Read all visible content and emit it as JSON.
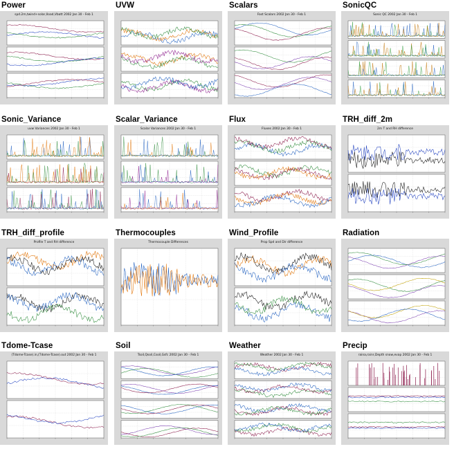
{
  "thumbnails": [
    {
      "label": "Power",
      "subtitle": "spd.2m,twind+solar,Iload,Vbatt 2002 Jan 30 - Feb 1",
      "panels": 3,
      "style": "lines",
      "colors": [
        "#1f3fbf",
        "#8b1a4a",
        "#2e8b3a"
      ]
    },
    {
      "label": "UVW",
      "subtitle": "",
      "panels": 3,
      "style": "dense",
      "colors": [
        "#1f5fbf",
        "#e07000",
        "#2e8b3a",
        "#8b1a8b"
      ]
    },
    {
      "label": "Scalars",
      "subtitle": "Fast Scalars 2002 Jan 30 - Feb 1",
      "panels": 3,
      "style": "smooth",
      "colors": [
        "#1f5fbf",
        "#2e8b3a",
        "#8b1a4a",
        "#7b3fb0"
      ]
    },
    {
      "label": "SonicQC",
      "subtitle": "Sonic QC 2002 Jan 30 - Feb 1",
      "panels": 4,
      "style": "spikes",
      "colors": [
        "#2e9b3a",
        "#1f5fbf",
        "#c07000"
      ]
    },
    {
      "label": "Sonic_Variance",
      "subtitle": "uvw Variances 2002 Jan 30 - Feb 1",
      "panels": 3,
      "style": "spikes",
      "colors": [
        "#1f5fbf",
        "#e07000",
        "#2e8b3a",
        "#8b1a4a"
      ]
    },
    {
      "label": "Scalar_Variance",
      "subtitle": "Scalar Variances 2002 Jan 30 - Feb 1",
      "panels": 3,
      "style": "spikes",
      "colors": [
        "#e07000",
        "#2e8b3a",
        "#1f5fbf",
        "#8b1a8b"
      ]
    },
    {
      "label": "Flux",
      "subtitle": "Fluxes 2002 Jan 30 - Feb 1",
      "panels": 3,
      "style": "dense",
      "colors": [
        "#1f5fbf",
        "#2e8b3a",
        "#8b1a4a",
        "#e07000"
      ]
    },
    {
      "label": "TRH_diff_2m",
      "subtitle": "2m T and RH difference",
      "panels": 2,
      "style": "noisy",
      "colors": [
        "#111111",
        "#1f3fbf"
      ]
    },
    {
      "label": "TRH_diff_profile",
      "subtitle": "Profile T and RH difference",
      "panels": 2,
      "style": "dense",
      "colors": [
        "#e07000",
        "#111111",
        "#1f5fbf",
        "#2e8b3a"
      ]
    },
    {
      "label": "Thermocouples",
      "subtitle": "Thermocouple Differences",
      "panels": 1,
      "style": "noisy",
      "colors": [
        "#1f5fbf",
        "#e07000",
        "#2e8b3a",
        "#cc2222",
        "#111111"
      ]
    },
    {
      "label": "Wind_Profile",
      "subtitle": "Prop Spd and Dir difference",
      "panels": 2,
      "style": "dense",
      "colors": [
        "#e07000",
        "#111111",
        "#1f5fbf",
        "#2e8b3a"
      ]
    },
    {
      "label": "Radiation",
      "subtitle": "",
      "panels": 3,
      "style": "smooth",
      "colors": [
        "#1f5fbf",
        "#2e8b3a",
        "#7b3fb0",
        "#c0a000"
      ]
    },
    {
      "label": "Tdome-Tcase",
      "subtitle": "(Tdome-Tcase).in,(Tdome-Tcase).out 2002 Jan 30 - Feb 1",
      "panels": 2,
      "style": "lines",
      "colors": [
        "#1f3fbf",
        "#8b1a4a"
      ]
    },
    {
      "label": "Soil",
      "subtitle": "Tsoil,Qsoil,Csoil,Gsfc 2002 Jan 30 - Feb 1",
      "panels": 4,
      "style": "smooth",
      "colors": [
        "#2e8b3a",
        "#7b3fb0",
        "#1f5fbf",
        "#8b1a4a"
      ]
    },
    {
      "label": "Weather",
      "subtitle": "Weather 2002 Jan 30 - Feb 1",
      "panels": 4,
      "style": "dense",
      "colors": [
        "#8b1a4a",
        "#2e8b3a",
        "#1f5fbf"
      ]
    },
    {
      "label": "Precip",
      "subtitle": "raina,rainr,Depth snow,evap 2002 Jan 30 - Feb 1",
      "panels": 3,
      "style": "bars",
      "colors": [
        "#8b1a4a",
        "#1f3fbf",
        "#2e8b3a"
      ]
    }
  ]
}
